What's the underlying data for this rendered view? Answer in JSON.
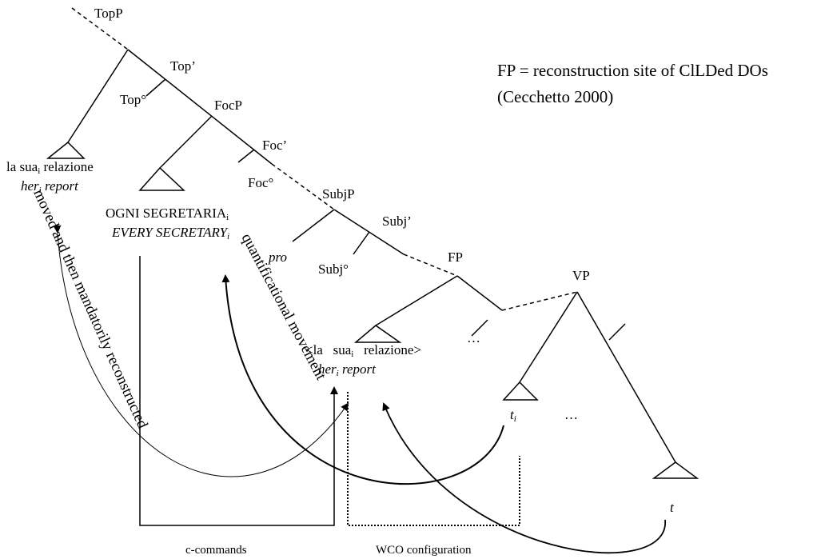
{
  "labels": {
    "topp": "TopP",
    "topbar": "Top’",
    "top0": "Top°",
    "focp": "FocP",
    "focbar": "Foc’",
    "foc0": "Foc°",
    "subjp": "SubjP",
    "subjbar": "Subj’",
    "subj0": "Subj°",
    "pro": "pro",
    "fp": "FP",
    "vp": "VP"
  },
  "topic": {
    "it_a": "la sua",
    "it_i": "i",
    "it_b": " relazione",
    "en_a": "her",
    "en_i": "i",
    "en_b": " report"
  },
  "focus": {
    "it_a": "OGNI SEGRETARIA",
    "it_i": "i",
    "en_a": "EVERY SECRETARY",
    "en_i": "i"
  },
  "reconstructed": {
    "it_a": "<la   sua",
    "it_i": "i",
    "it_b": "   relazione>",
    "dots": "…",
    "en_a": "her",
    "en_i": "i",
    "en_b": " report"
  },
  "traces": {
    "ti_a": "t",
    "ti_i": "i",
    "dots": "…",
    "t": "t"
  },
  "note": [
    "FP = reconstruction site of ClLDed DOs",
    "(Cecchetto 2000)"
  ],
  "arrows": {
    "moved": "moved and then mandatorily reconstructed",
    "quant": "quantificational movement",
    "ccommand": "c-commands",
    "wco": "WCO configuration"
  }
}
